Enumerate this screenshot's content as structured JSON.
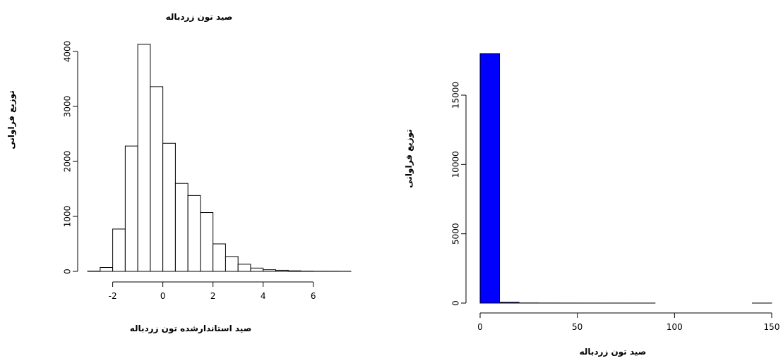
{
  "chart_data": [
    {
      "type": "bar",
      "title": "صید تون زردباله",
      "xlabel": "صید استاندارشده تون زردباله",
      "ylabel": "توزیع فراوانی",
      "bin_edges": [
        -3.0,
        -2.5,
        -2.0,
        -1.5,
        -1.0,
        -0.5,
        0.0,
        0.5,
        1.0,
        1.5,
        2.0,
        2.5,
        3.0,
        3.5,
        4.0,
        4.5,
        5.0,
        5.5,
        6.0,
        6.5,
        7.0,
        7.5
      ],
      "values": [
        5,
        70,
        770,
        2280,
        4130,
        3360,
        2330,
        1600,
        1380,
        1070,
        500,
        270,
        130,
        60,
        30,
        20,
        10,
        5,
        3,
        3,
        2
      ],
      "xticks": [
        -2,
        0,
        2,
        4,
        6
      ],
      "yticks": [
        0,
        1000,
        2000,
        3000,
        4000
      ],
      "bar_color": "#ffffff"
    },
    {
      "type": "bar",
      "title": "",
      "xlabel": "صید تون زردباله",
      "ylabel": "توزیع فراوانی",
      "bin_edges": [
        0,
        10,
        20,
        30,
        40,
        50,
        60,
        70,
        80,
        90,
        100,
        110,
        120,
        130,
        140,
        150
      ],
      "values": [
        18000,
        60,
        10,
        5,
        3,
        2,
        1,
        1,
        1,
        0,
        0,
        0,
        0,
        0,
        1
      ],
      "xticks": [
        0,
        50,
        100,
        150
      ],
      "yticks": [
        0,
        5000,
        10000,
        15000
      ],
      "bar_color": "#0000ff"
    }
  ]
}
